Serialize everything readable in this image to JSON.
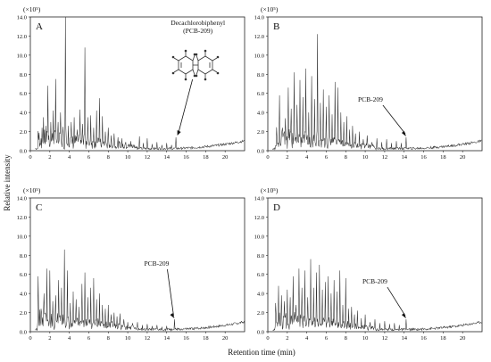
{
  "figure": {
    "ylabel": "Relative intensity",
    "xlabel": "Retention time  (min)"
  },
  "chart_data": [
    {
      "type": "line",
      "panel": "A",
      "multiplier": "(×10⁵)",
      "xlim": [
        0,
        22
      ],
      "ylim": [
        0,
        14
      ],
      "xticks": [
        "0",
        "2",
        "4",
        "6",
        "8",
        "10",
        "12",
        "14",
        "16",
        "18",
        "20"
      ],
      "yticks": [
        "0.0",
        "2.0",
        "4.0",
        "6.0",
        "8.0",
        "10.0",
        "12.0",
        "14.0"
      ],
      "annotation": {
        "text_line1": "Decachlorobiphenyl",
        "text_line2": "(PCB-209)",
        "x": 15.0,
        "y": 1.4
      },
      "peaks": [
        [
          1.1,
          1.2
        ],
        [
          1.35,
          3.5
        ],
        [
          1.6,
          2.6
        ],
        [
          1.8,
          6.8
        ],
        [
          2.1,
          3.0
        ],
        [
          2.35,
          4.2
        ],
        [
          2.6,
          7.5
        ],
        [
          2.85,
          3.0
        ],
        [
          3.1,
          4.0
        ],
        [
          3.35,
          2.5
        ],
        [
          3.6,
          14.0
        ],
        [
          3.9,
          2.6
        ],
        [
          4.2,
          3.0
        ],
        [
          4.5,
          3.5
        ],
        [
          4.8,
          2.2
        ],
        [
          5.1,
          4.3
        ],
        [
          5.35,
          2.8
        ],
        [
          5.6,
          10.8
        ],
        [
          5.9,
          3.5
        ],
        [
          6.2,
          3.7
        ],
        [
          6.5,
          2.4
        ],
        [
          6.8,
          4.2
        ],
        [
          7.1,
          5.5
        ],
        [
          7.4,
          3.6
        ],
        [
          7.7,
          2.0
        ],
        [
          8.0,
          2.4
        ],
        [
          8.3,
          1.6
        ],
        [
          8.6,
          1.8
        ],
        [
          9.0,
          1.4
        ],
        [
          9.4,
          1.3
        ],
        [
          9.8,
          0.9
        ],
        [
          10.3,
          1.0
        ],
        [
          10.7,
          0.6
        ],
        [
          11.2,
          1.5
        ],
        [
          11.6,
          0.8
        ],
        [
          12.0,
          1.3
        ],
        [
          12.5,
          0.7
        ],
        [
          13.0,
          0.9
        ],
        [
          13.5,
          0.6
        ],
        [
          14.0,
          0.8
        ],
        [
          14.5,
          0.6
        ],
        [
          14.95,
          1.4
        ]
      ]
    },
    {
      "type": "line",
      "panel": "B",
      "multiplier": "(×10⁵)",
      "xlim": [
        0,
        22
      ],
      "ylim": [
        0,
        14
      ],
      "xticks": [
        "0",
        "2",
        "4",
        "6",
        "8",
        "10",
        "12",
        "14",
        "16",
        "18",
        "20"
      ],
      "yticks": [
        "0.0",
        "2.0",
        "4.0",
        "6.0",
        "8.0",
        "10.0",
        "12.0",
        "14.0"
      ],
      "annotation": {
        "text_line1": "PCB-209",
        "text_line2": "",
        "x": 14.2,
        "y": 1.4
      },
      "peaks": [
        [
          0.9,
          1.2
        ],
        [
          1.2,
          5.8
        ],
        [
          1.5,
          2.4
        ],
        [
          1.8,
          3.4
        ],
        [
          2.1,
          6.6
        ],
        [
          2.4,
          4.4
        ],
        [
          2.7,
          8.2
        ],
        [
          3.0,
          4.8
        ],
        [
          3.3,
          7.4
        ],
        [
          3.6,
          5.6
        ],
        [
          3.9,
          8.6
        ],
        [
          4.2,
          4.0
        ],
        [
          4.5,
          7.8
        ],
        [
          4.8,
          5.4
        ],
        [
          5.1,
          12.2
        ],
        [
          5.4,
          5.0
        ],
        [
          5.7,
          6.4
        ],
        [
          6.0,
          4.6
        ],
        [
          6.3,
          5.8
        ],
        [
          6.6,
          3.8
        ],
        [
          6.9,
          7.2
        ],
        [
          7.2,
          6.6
        ],
        [
          7.5,
          4.0
        ],
        [
          7.8,
          3.0
        ],
        [
          8.1,
          3.6
        ],
        [
          8.4,
          2.2
        ],
        [
          8.7,
          2.6
        ],
        [
          9.0,
          1.8
        ],
        [
          9.4,
          2.0
        ],
        [
          9.8,
          1.2
        ],
        [
          10.2,
          1.6
        ],
        [
          10.7,
          0.9
        ],
        [
          11.2,
          1.3
        ],
        [
          11.7,
          0.9
        ],
        [
          12.2,
          1.2
        ],
        [
          12.7,
          0.8
        ],
        [
          13.2,
          1.0
        ],
        [
          13.7,
          0.8
        ],
        [
          14.2,
          1.4
        ]
      ]
    },
    {
      "type": "line",
      "panel": "C",
      "multiplier": "(×10⁵)",
      "xlim": [
        0,
        22
      ],
      "ylim": [
        0,
        14
      ],
      "xticks": [
        "0",
        "2",
        "4",
        "6",
        "8",
        "10",
        "12",
        "14",
        "16",
        "18",
        "20"
      ],
      "yticks": [
        "0.0",
        "2.0",
        "4.0",
        "6.0",
        "8.0",
        "10.0",
        "12.0",
        "14.0"
      ],
      "annotation": {
        "text_line1": "PCB-209",
        "text_line2": "",
        "x": 14.8,
        "y": 1.3
      },
      "peaks": [
        [
          0.8,
          5.8
        ],
        [
          1.1,
          2.4
        ],
        [
          1.4,
          4.0
        ],
        [
          1.7,
          6.6
        ],
        [
          2.0,
          6.4
        ],
        [
          2.3,
          3.2
        ],
        [
          2.6,
          3.8
        ],
        [
          2.9,
          5.4
        ],
        [
          3.2,
          4.6
        ],
        [
          3.5,
          8.6
        ],
        [
          3.8,
          6.4
        ],
        [
          4.1,
          3.0
        ],
        [
          4.4,
          4.2
        ],
        [
          4.7,
          3.4
        ],
        [
          5.0,
          2.6
        ],
        [
          5.3,
          5.0
        ],
        [
          5.6,
          6.2
        ],
        [
          5.9,
          3.6
        ],
        [
          6.2,
          4.6
        ],
        [
          6.5,
          5.6
        ],
        [
          6.8,
          3.4
        ],
        [
          7.1,
          4.0
        ],
        [
          7.4,
          2.8
        ],
        [
          7.7,
          2.4
        ],
        [
          8.0,
          2.8
        ],
        [
          8.3,
          1.8
        ],
        [
          8.6,
          2.0
        ],
        [
          8.9,
          1.6
        ],
        [
          9.2,
          1.9
        ],
        [
          9.6,
          1.3
        ],
        [
          10.0,
          1.0
        ],
        [
          10.5,
          0.9
        ],
        [
          11.0,
          1.0
        ],
        [
          11.5,
          0.7
        ],
        [
          12.0,
          0.8
        ],
        [
          12.5,
          0.6
        ],
        [
          13.0,
          0.7
        ],
        [
          13.5,
          0.5
        ],
        [
          14.0,
          0.6
        ],
        [
          14.8,
          1.3
        ]
      ]
    },
    {
      "type": "line",
      "panel": "D",
      "multiplier": "(×10⁵)",
      "xlim": [
        0,
        22
      ],
      "ylim": [
        0,
        14
      ],
      "xticks": [
        "0",
        "2",
        "4",
        "6",
        "8",
        "10",
        "12",
        "14",
        "16",
        "18",
        "20"
      ],
      "yticks": [
        "0.0",
        "2.0",
        "4.0",
        "6.0",
        "8.0",
        "10.0",
        "12.0",
        "14.0"
      ],
      "annotation": {
        "text_line1": "PCB-209",
        "text_line2": "",
        "x": 14.2,
        "y": 1.3
      },
      "peaks": [
        [
          0.8,
          3.0
        ],
        [
          1.1,
          4.8
        ],
        [
          1.4,
          3.8
        ],
        [
          1.7,
          3.2
        ],
        [
          2.0,
          4.4
        ],
        [
          2.3,
          3.6
        ],
        [
          2.6,
          5.8
        ],
        [
          2.9,
          2.8
        ],
        [
          3.2,
          6.6
        ],
        [
          3.5,
          4.6
        ],
        [
          3.8,
          6.4
        ],
        [
          4.1,
          3.6
        ],
        [
          4.4,
          7.6
        ],
        [
          4.7,
          4.6
        ],
        [
          5.0,
          6.2
        ],
        [
          5.3,
          7.0
        ],
        [
          5.6,
          4.4
        ],
        [
          5.9,
          5.2
        ],
        [
          6.2,
          5.8
        ],
        [
          6.5,
          4.0
        ],
        [
          6.8,
          5.4
        ],
        [
          7.1,
          4.2
        ],
        [
          7.4,
          6.4
        ],
        [
          7.7,
          2.8
        ],
        [
          8.0,
          5.6
        ],
        [
          8.3,
          2.4
        ],
        [
          8.6,
          2.6
        ],
        [
          8.9,
          1.8
        ],
        [
          9.2,
          2.2
        ],
        [
          9.6,
          1.4
        ],
        [
          10.0,
          1.8
        ],
        [
          10.5,
          1.0
        ],
        [
          11.0,
          1.3
        ],
        [
          11.5,
          0.9
        ],
        [
          12.0,
          1.1
        ],
        [
          12.5,
          0.8
        ],
        [
          13.0,
          0.9
        ],
        [
          13.5,
          0.7
        ],
        [
          14.2,
          1.3
        ]
      ]
    }
  ]
}
